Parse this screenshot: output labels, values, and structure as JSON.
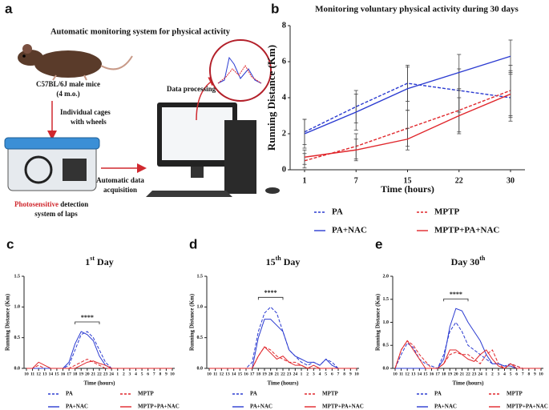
{
  "diagram": {
    "panel_label": "a",
    "title": "Automatic monitoring system for physical activity",
    "mouse_lines": [
      "C57BL/6J male mice",
      "(4 m.o.)"
    ],
    "cage_lines": [
      "Individual cages",
      "with wheels"
    ],
    "detection_highlight": "Photosensitive",
    "detection_rest": " detection",
    "detection_line2": "system of laps",
    "acquisition_lines": [
      "Automatic data",
      "acquisition"
    ],
    "processing": "Data processing"
  },
  "chart_data": [
    {
      "type": "line",
      "panel_label": "b",
      "title": "Monitoring voluntary physical activity during 30 days",
      "x_label": "Time (hours)",
      "y_label": "Running Distance (Km)",
      "categories": [
        "1",
        "7",
        "15",
        "22",
        "30"
      ],
      "ylim": [
        0,
        8
      ],
      "yticks": [
        0,
        2,
        4,
        6,
        8
      ],
      "series": [
        {
          "name": "PA",
          "color": "#2b3bd1",
          "style": "dashed",
          "values": [
            2.1,
            3.5,
            4.8,
            4.4,
            4.0
          ],
          "errors": [
            0.7,
            0.9,
            1.0,
            1.2,
            1.3
          ]
        },
        {
          "name": "MPTP",
          "color": "#e0262b",
          "style": "dashed",
          "values": [
            0.5,
            1.3,
            2.3,
            3.3,
            4.4
          ],
          "errors": [
            0.4,
            0.7,
            1.0,
            1.2,
            1.4
          ]
        },
        {
          "name": "PA+NAC",
          "color": "#2b3bd1",
          "style": "solid",
          "values": [
            2.0,
            3.2,
            4.5,
            5.4,
            6.3
          ],
          "errors": [
            0.8,
            1.0,
            1.2,
            1.0,
            0.9
          ]
        },
        {
          "name": "MPTP+PA+NAC",
          "color": "#e0262b",
          "style": "solid",
          "values": [
            0.7,
            1.1,
            1.7,
            3.0,
            4.2
          ],
          "errors": [
            0.4,
            0.6,
            0.6,
            1.0,
            1.3
          ]
        }
      ]
    },
    {
      "type": "line",
      "panel_label": "c",
      "title_parts": [
        {
          "text": "1"
        },
        {
          "text": "st",
          "sup": true
        },
        {
          "text": " Day"
        }
      ],
      "x_label": "Time (hours)",
      "y_label": "Running Distance (Km)",
      "annotation": "****",
      "categories": [
        "10",
        "11",
        "12",
        "13",
        "14",
        "15",
        "16",
        "17",
        "18",
        "19",
        "20",
        "21",
        "22",
        "23",
        "24",
        "1",
        "2",
        "3",
        "4",
        "5",
        "6",
        "7",
        "8",
        "9",
        "10"
      ],
      "ylim": [
        0,
        1.5
      ],
      "yticks": [
        {
          "value": 0,
          "label": "0.0"
        },
        0.5,
        {
          "value": 1,
          "label": "1.0"
        },
        1.5
      ],
      "series": [
        {
          "name": "PA",
          "color": "#2b3bd1",
          "style": "dashed",
          "values": [
            0,
            0,
            0,
            0,
            0,
            0,
            0,
            0.05,
            0.3,
            0.55,
            0.6,
            0.5,
            0.3,
            0.1,
            0,
            0,
            0,
            0,
            0,
            0,
            0,
            0,
            0,
            0,
            0
          ]
        },
        {
          "name": "MPTP",
          "color": "#e0262b",
          "style": "dashed",
          "values": [
            0,
            0,
            0.05,
            0,
            0,
            0,
            0,
            0,
            0.05,
            0.1,
            0.15,
            0.1,
            0.05,
            0,
            0,
            0,
            0,
            0,
            0,
            0,
            0,
            0,
            0,
            0,
            0
          ]
        },
        {
          "name": "PA+NAC",
          "color": "#2b3bd1",
          "style": "solid",
          "values": [
            0,
            0,
            0,
            0,
            0,
            0,
            0,
            0.1,
            0.4,
            0.6,
            0.55,
            0.45,
            0.2,
            0.05,
            0,
            0,
            0,
            0,
            0,
            0,
            0,
            0,
            0,
            0,
            0
          ]
        },
        {
          "name": "MPTP+PA+NAC",
          "color": "#e0262b",
          "style": "solid",
          "values": [
            0,
            0,
            0.1,
            0.05,
            0,
            0,
            0,
            0,
            0,
            0.05,
            0.1,
            0.12,
            0.08,
            0.05,
            0,
            0,
            0,
            0,
            0,
            0,
            0,
            0,
            0,
            0,
            0
          ]
        }
      ]
    },
    {
      "type": "line",
      "panel_label": "d",
      "title_parts": [
        {
          "text": "15"
        },
        {
          "text": "th",
          "sup": true
        },
        {
          "text": " Day"
        }
      ],
      "x_label": "Time (hours)",
      "y_label": "Running Distance (Km)",
      "annotation": "****",
      "categories": [
        "10",
        "11",
        "12",
        "13",
        "14",
        "15",
        "16",
        "17",
        "18",
        "19",
        "20",
        "21",
        "22",
        "23",
        "24",
        "1",
        "2",
        "3",
        "4",
        "5",
        "6",
        "7",
        "8",
        "9",
        "10"
      ],
      "ylim": [
        0,
        1.5
      ],
      "yticks": [
        {
          "value": 0,
          "label": "0.0"
        },
        0.5,
        {
          "value": 1,
          "label": "1.0"
        },
        1.5
      ],
      "series": [
        {
          "name": "PA",
          "color": "#2b3bd1",
          "style": "dashed",
          "values": [
            0,
            0,
            0,
            0,
            0,
            0,
            0,
            0.1,
            0.6,
            0.9,
            1.0,
            0.9,
            0.6,
            0.3,
            0.2,
            0.1,
            0.05,
            0.1,
            0.05,
            0.15,
            0.1,
            0,
            0,
            0,
            0
          ]
        },
        {
          "name": "MPTP",
          "color": "#e0262b",
          "style": "dashed",
          "values": [
            0,
            0,
            0,
            0,
            0,
            0,
            0,
            0,
            0.2,
            0.35,
            0.3,
            0.2,
            0.15,
            0.1,
            0.1,
            0.05,
            0,
            0,
            0,
            0,
            0,
            0,
            0,
            0,
            0
          ]
        },
        {
          "name": "PA+NAC",
          "color": "#2b3bd1",
          "style": "solid",
          "values": [
            0,
            0,
            0,
            0,
            0,
            0,
            0,
            0,
            0.5,
            0.8,
            0.8,
            0.7,
            0.6,
            0.3,
            0.2,
            0.15,
            0.1,
            0.1,
            0.05,
            0.15,
            0.05,
            0,
            0,
            0,
            0
          ]
        },
        {
          "name": "MPTP+PA+NAC",
          "color": "#e0262b",
          "style": "solid",
          "values": [
            0,
            0,
            0,
            0,
            0,
            0,
            0,
            0,
            0.2,
            0.35,
            0.25,
            0.15,
            0.2,
            0.1,
            0.05,
            0.05,
            0,
            0.05,
            0,
            0,
            0,
            0,
            0,
            0,
            0
          ]
        }
      ]
    },
    {
      "type": "line",
      "panel_label": "e",
      "title_parts": [
        {
          "text": "Day 30"
        },
        {
          "text": "th",
          "sup": true
        }
      ],
      "x_label": "Time (hours)",
      "y_label": "Running Distance (Km)",
      "annotation": "****",
      "categories": [
        "10",
        "11",
        "12",
        "13",
        "14",
        "15",
        "16",
        "17",
        "18",
        "19",
        "20",
        "21",
        "22",
        "23",
        "24",
        "1",
        "2",
        "3",
        "4",
        "5",
        "6",
        "7",
        "8",
        "9",
        "10"
      ],
      "ylim": [
        0,
        2
      ],
      "yticks": [
        {
          "value": 0,
          "label": "0.0"
        },
        0.5,
        {
          "value": 1,
          "label": "1.0"
        },
        1.5,
        {
          "value": 2,
          "label": "2.0"
        }
      ],
      "series": [
        {
          "name": "PA",
          "color": "#2b3bd1",
          "style": "dashed",
          "values": [
            0,
            0.3,
            0.55,
            0.45,
            0.2,
            0.1,
            0.05,
            0,
            0.3,
            0.8,
            1.0,
            0.8,
            0.5,
            0.4,
            0.3,
            0.2,
            0.1,
            0.1,
            0.05,
            0.1,
            0.05,
            0,
            0,
            0,
            0
          ]
        },
        {
          "name": "MPTP",
          "color": "#e0262b",
          "style": "dashed",
          "values": [
            0,
            0.4,
            0.6,
            0.5,
            0.3,
            0.15,
            0,
            0,
            0.1,
            0.3,
            0.35,
            0.3,
            0.3,
            0.2,
            0.1,
            0.3,
            0.4,
            0.1,
            0,
            0.1,
            0.05,
            0,
            0,
            0,
            0
          ]
        },
        {
          "name": "PA+NAC",
          "color": "#2b3bd1",
          "style": "solid",
          "values": [
            0,
            0,
            0,
            0,
            0,
            0,
            0,
            0,
            0.2,
            0.9,
            1.3,
            1.25,
            1.0,
            0.8,
            0.6,
            0.3,
            0.1,
            0.1,
            0.05,
            0.05,
            0,
            0,
            0,
            0,
            0
          ]
        },
        {
          "name": "MPTP+PA+NAC",
          "color": "#e0262b",
          "style": "solid",
          "values": [
            0,
            0.4,
            0.6,
            0.4,
            0.2,
            0,
            0,
            0,
            0.1,
            0.4,
            0.4,
            0.3,
            0.2,
            0.15,
            0.3,
            0.4,
            0.2,
            0.05,
            0,
            0.1,
            0,
            0,
            0,
            0,
            0
          ]
        }
      ]
    }
  ]
}
